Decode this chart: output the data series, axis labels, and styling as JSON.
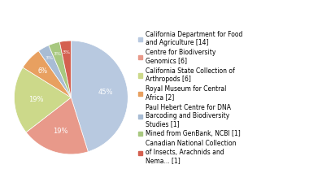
{
  "labels": [
    "California Department for Food\nand Agriculture [14]",
    "Centre for Biodiversity\nGenomics [6]",
    "California State Collection of\nArthropods [6]",
    "Royal Museum for Central\nAfrica [2]",
    "Paul Hebert Centre for DNA\nBarcoding and Biodiversity\nStudies [1]",
    "Mined from GenBank, NCBI [1]",
    "Canadian National Collection\nof Insects, Arachnids and\nNema... [1]"
  ],
  "values": [
    14,
    6,
    6,
    2,
    1,
    1,
    1
  ],
  "colors": [
    "#b8c9e0",
    "#e8998a",
    "#ccd98a",
    "#e8a060",
    "#a8bcd4",
    "#a8c880",
    "#d46050"
  ],
  "pct_labels": [
    "45%",
    "19%",
    "19%",
    "6%",
    "3%",
    "3%",
    "3%"
  ],
  "startangle": 90,
  "background_color": "#ffffff",
  "pct_fontsize": 6,
  "legend_fontsize": 5.5
}
